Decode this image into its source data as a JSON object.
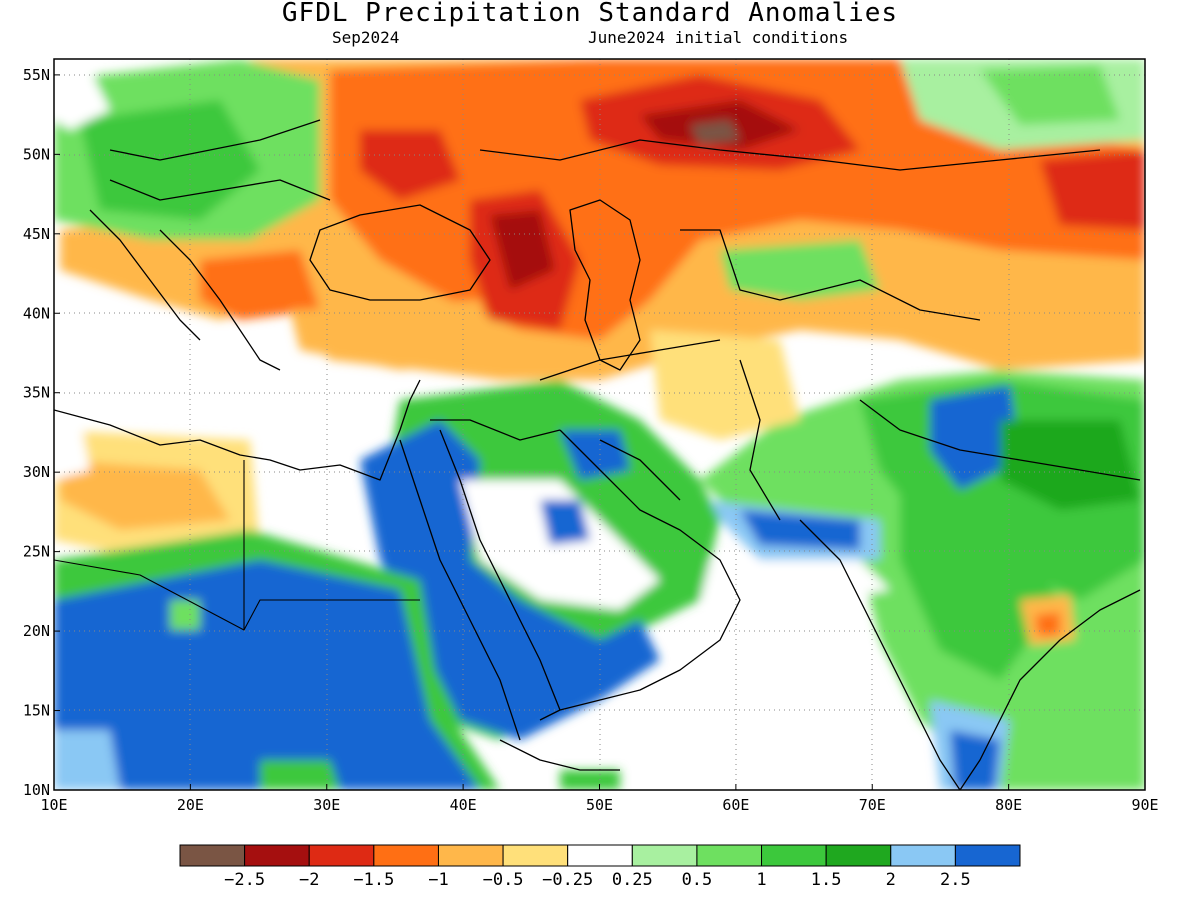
{
  "title": "GFDL Precipitation Standard Anomalies",
  "subtitle_left": "Sep2024",
  "subtitle_right": "June2024 initial conditions",
  "axes": {
    "lon_ticks": [
      "10E",
      "20E",
      "30E",
      "40E",
      "50E",
      "60E",
      "70E",
      "80E",
      "90E"
    ],
    "lat_ticks": [
      "55N",
      "50N",
      "45N",
      "40N",
      "35N",
      "30N",
      "25N",
      "20N",
      "15N",
      "10N"
    ],
    "lon_range": [
      10,
      90
    ],
    "lat_range": [
      10,
      56
    ],
    "grid": "dotted"
  },
  "legend": {
    "placement": "bottom",
    "colors": [
      "#7a5544",
      "#a50f0f",
      "#de2a14",
      "#ff6f14",
      "#ffb74a",
      "#ffe07a",
      "#ffffff",
      "#a8f0a0",
      "#6ee060",
      "#3cc83c",
      "#1fa81f",
      "#8ac8f4",
      "#1766d2"
    ],
    "labels": [
      "-2.5",
      "-2",
      "-1.5",
      "-1",
      "-0.5",
      "-0.25",
      "0.25",
      "0.5",
      "1",
      "1.5",
      "2",
      "2.5"
    ]
  },
  "field": {
    "dry_zones": [
      {
        "lon": 56,
        "lat": 51,
        "level": -2.5
      },
      {
        "lon": 58,
        "lat": 50,
        "level": -2
      },
      {
        "lon": 43,
        "lat": 44,
        "level": -2
      },
      {
        "lon": 37,
        "lat": 49,
        "level": -2
      },
      {
        "lon": 87,
        "lat": 48,
        "level": -2
      },
      {
        "lon": 45,
        "lat": 40,
        "level": -1.5
      },
      {
        "lon": 34,
        "lat": 46,
        "level": -1
      },
      {
        "lon": 55,
        "lat": 44,
        "level": -0.5
      },
      {
        "lon": 75,
        "lat": 42,
        "level": -0.5
      },
      {
        "lon": 18,
        "lat": 28,
        "level": -0.5
      }
    ],
    "wet_zones": [
      {
        "lon": 17,
        "lat": 17,
        "level": 2.5
      },
      {
        "lon": 33,
        "lat": 18,
        "level": 2.5
      },
      {
        "lon": 44,
        "lat": 20,
        "level": 2.5
      },
      {
        "lon": 78,
        "lat": 32,
        "level": 2
      },
      {
        "lon": 76,
        "lat": 23,
        "level": 1.5
      },
      {
        "lon": 20,
        "lat": 50,
        "level": 1
      },
      {
        "lon": 66,
        "lat": 32,
        "level": 1
      }
    ]
  }
}
